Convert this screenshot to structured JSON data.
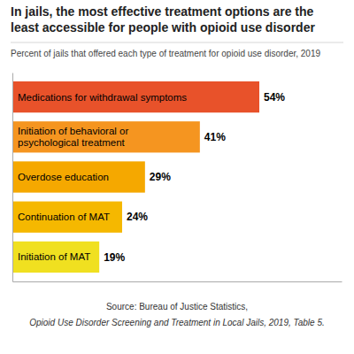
{
  "chart_data": {
    "type": "bar",
    "orientation": "horizontal",
    "title": "In jails, the most effective treatment options are the\nleast accessible for people with opioid use disorder",
    "subtitle": "Percent of jails that offered each type of treatment for opioid use disorder, 2019",
    "categories": [
      "Medications for withdrawal symptoms",
      "Initiation of behavioral or\npsychological treatment",
      "Overdose education",
      "Continuation of MAT",
      "Initiation of MAT"
    ],
    "values": [
      54,
      41,
      29,
      24,
      19
    ],
    "value_labels": [
      "54%",
      "41%",
      "29%",
      "24%",
      "19%"
    ],
    "colors": [
      "#E8522A",
      "#F59520",
      "#F5A800",
      "#F5B800",
      "#F0E020"
    ],
    "xlim": [
      0,
      72
    ],
    "data_labels": true,
    "tick_labels": false,
    "grid": false,
    "annotations": [
      "Source: Bureau of Justice Statistics,",
      "Opioid Use Disorder Screening and Treatment in Local Jails, 2019, Table 5."
    ]
  }
}
